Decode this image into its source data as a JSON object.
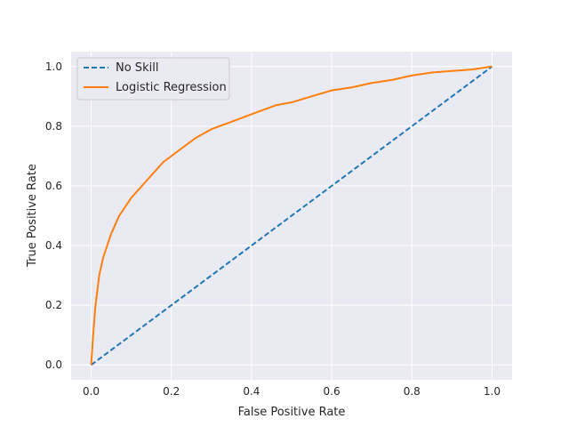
{
  "chart_data": {
    "type": "line",
    "title": "",
    "xlabel": "False Positive Rate",
    "ylabel": "True Positive Rate",
    "xlim": [
      -0.05,
      1.05
    ],
    "ylim": [
      -0.05,
      1.05
    ],
    "grid": true,
    "legend_position": "top-left",
    "x_ticks": [
      "0.0",
      "0.2",
      "0.4",
      "0.6",
      "0.8",
      "1.0"
    ],
    "y_ticks": [
      "0.0",
      "0.2",
      "0.4",
      "0.6",
      "0.8",
      "1.0"
    ],
    "series": [
      {
        "name": "No Skill",
        "color": "#1f77b4",
        "dash": true,
        "x": [
          0,
          1
        ],
        "y": [
          0,
          1
        ]
      },
      {
        "name": "Logistic Regression",
        "color": "#ff7f0e",
        "dash": false,
        "x": [
          0.0,
          0.005,
          0.01,
          0.02,
          0.03,
          0.04,
          0.05,
          0.06,
          0.07,
          0.08,
          0.09,
          0.1,
          0.12,
          0.14,
          0.16,
          0.18,
          0.2,
          0.23,
          0.26,
          0.3,
          0.34,
          0.38,
          0.42,
          0.46,
          0.5,
          0.55,
          0.6,
          0.65,
          0.7,
          0.75,
          0.8,
          0.85,
          0.9,
          0.95,
          1.0
        ],
        "y": [
          0.0,
          0.1,
          0.19,
          0.3,
          0.36,
          0.4,
          0.44,
          0.47,
          0.5,
          0.52,
          0.54,
          0.56,
          0.59,
          0.62,
          0.65,
          0.68,
          0.7,
          0.73,
          0.76,
          0.79,
          0.81,
          0.83,
          0.85,
          0.87,
          0.88,
          0.9,
          0.92,
          0.93,
          0.945,
          0.955,
          0.97,
          0.98,
          0.985,
          0.99,
          1.0
        ]
      }
    ]
  }
}
